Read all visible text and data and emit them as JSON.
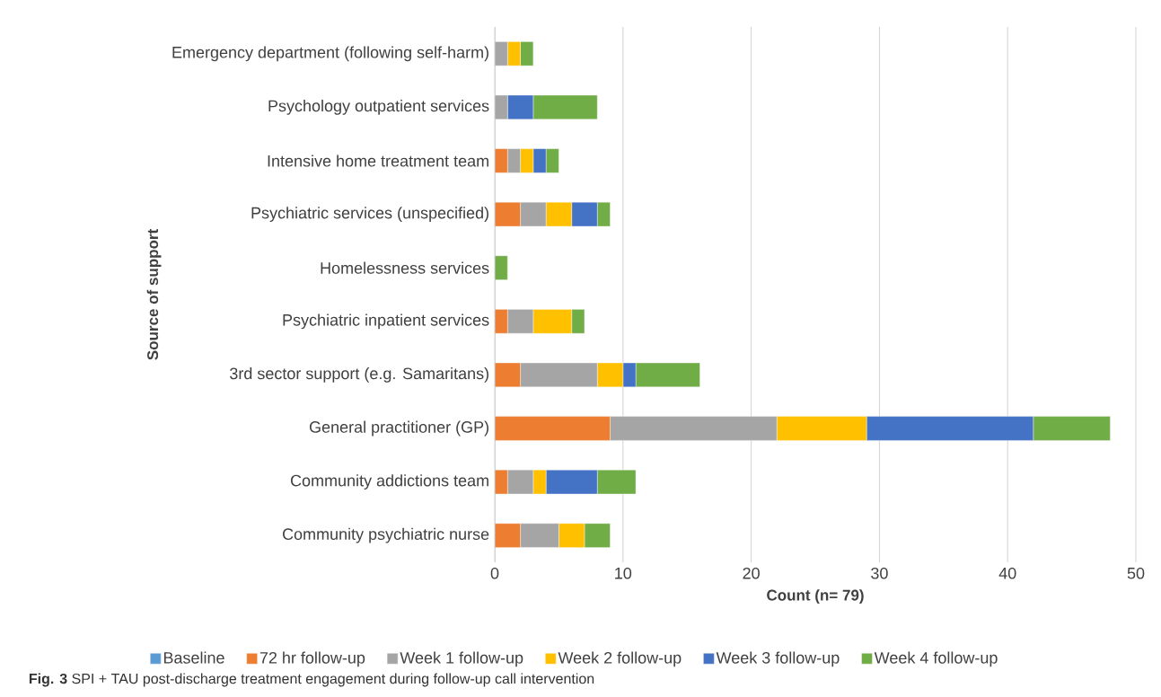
{
  "chart_data": {
    "type": "bar",
    "orientation": "horizontal",
    "stacked": true,
    "categories": [
      "Emergency department (following self-harm)",
      "Psychology outpatient services",
      "Intensive home treatment team",
      "Psychiatric services (unspecified)",
      "Homelessness services",
      "Psychiatric inpatient services",
      "3rd sector support (e.g. Samaritans)",
      "General practitioner (GP)",
      "Community addictions team",
      "Community psychiatric nurse"
    ],
    "series": [
      {
        "name": "Baseline",
        "color": "#5b9bd5",
        "values": [
          0,
          0,
          0,
          0,
          0,
          0,
          0,
          0,
          0,
          0
        ]
      },
      {
        "name": "72 hr follow-up",
        "color": "#ed7d31",
        "values": [
          0,
          0,
          1,
          2,
          0,
          1,
          2,
          9,
          1,
          2
        ]
      },
      {
        "name": "Week 1 follow-up",
        "color": "#a5a5a5",
        "values": [
          1,
          1,
          1,
          2,
          0,
          2,
          6,
          13,
          2,
          3
        ]
      },
      {
        "name": "Week 2 follow-up",
        "color": "#ffc000",
        "values": [
          1,
          0,
          1,
          2,
          0,
          3,
          2,
          7,
          1,
          2
        ]
      },
      {
        "name": "Week 3 follow-up",
        "color": "#4472c4",
        "values": [
          0,
          2,
          1,
          2,
          0,
          0,
          1,
          13,
          4,
          0
        ]
      },
      {
        "name": "Week 4 follow-up",
        "color": "#70ad47",
        "values": [
          1,
          5,
          1,
          1,
          1,
          1,
          5,
          6,
          3,
          2
        ]
      }
    ],
    "xlim": [
      0,
      50
    ],
    "xticks": [
      0,
      10,
      20,
      30,
      40,
      50
    ],
    "xlabel": "Count (n= 79)",
    "ylabel": "Source of support",
    "grid": "x",
    "legend": "bottom",
    "annotations": [
      "**Fig. 3** SPI + TAU post-discharge treatment engagement during follow-up call intervention"
    ]
  }
}
